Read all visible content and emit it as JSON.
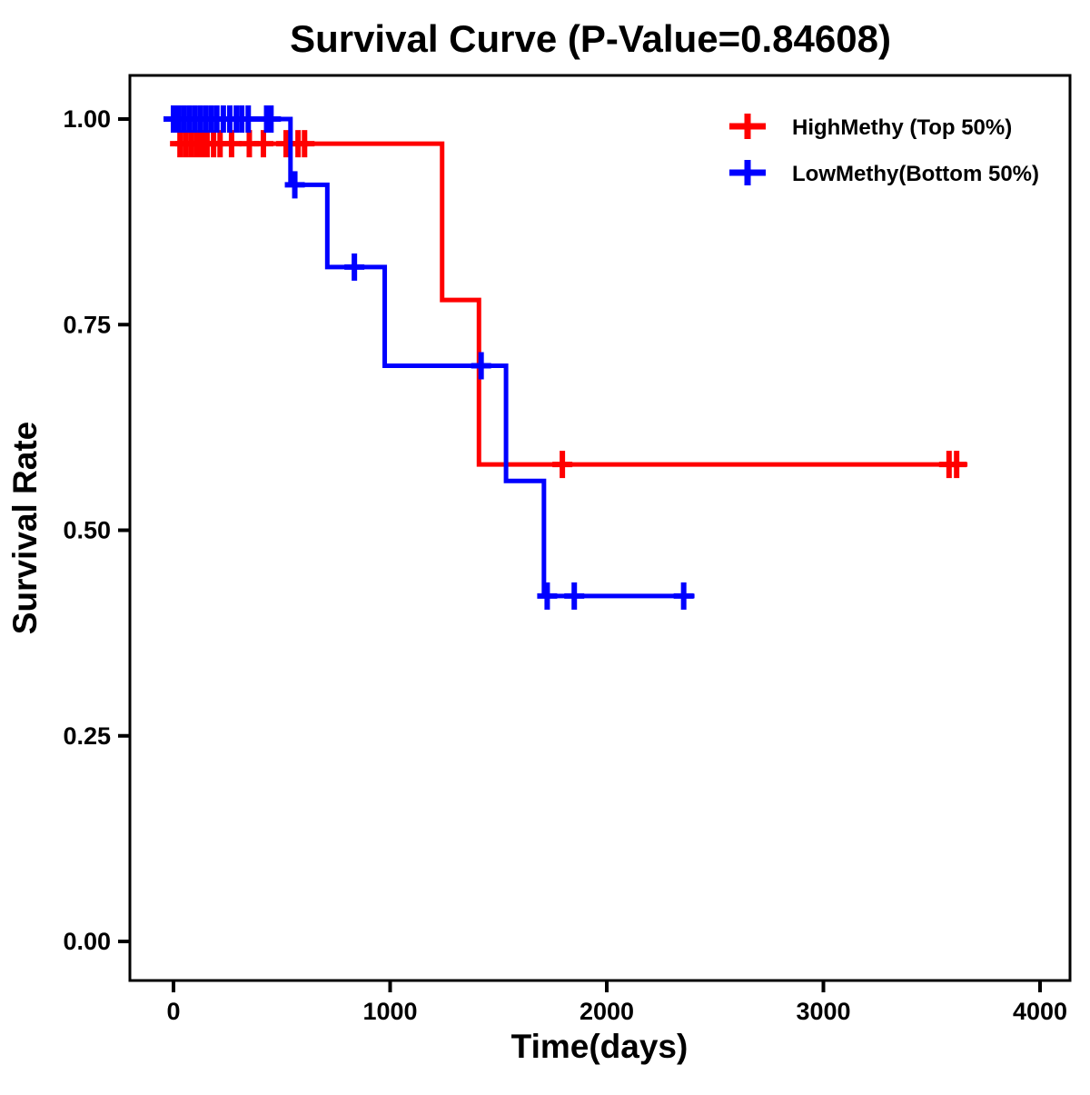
{
  "chart_data": {
    "type": "line",
    "subtype": "kaplan_meier_step_curve",
    "title": "Survival Curve (P-Value=0.84608)",
    "xlabel": "Time(days)",
    "ylabel": "Survival Rate",
    "xlim": [
      0,
      4000
    ],
    "ylim": [
      0.0,
      1.0
    ],
    "grid": false,
    "legend_position": "top-right",
    "x_ticks": [
      {
        "value": 0,
        "label": "0"
      },
      {
        "value": 1000,
        "label": "1000"
      },
      {
        "value": 2000,
        "label": "2000"
      },
      {
        "value": 3000,
        "label": "3000"
      },
      {
        "value": 4000,
        "label": "4000"
      }
    ],
    "y_ticks": [
      {
        "value": 0.0,
        "label": "0.00"
      },
      {
        "value": 0.25,
        "label": "0.25"
      },
      {
        "value": 0.5,
        "label": "0.50"
      },
      {
        "value": 0.75,
        "label": "0.75"
      },
      {
        "value": 1.0,
        "label": "1.00"
      }
    ],
    "series": [
      {
        "name": "HighMethy (Top 50%)",
        "slug": "highmethy",
        "color": "#FF0000",
        "steps": [
          [
            0,
            0.97
          ],
          [
            1240,
            0.97
          ],
          [
            1240,
            0.78
          ],
          [
            1410,
            0.78
          ],
          [
            1410,
            0.58
          ],
          [
            3665,
            0.58
          ]
        ],
        "censor_marks": [
          [
            30,
            0.97
          ],
          [
            55,
            0.97
          ],
          [
            80,
            0.97
          ],
          [
            105,
            0.97
          ],
          [
            130,
            0.97
          ],
          [
            155,
            0.97
          ],
          [
            185,
            0.97
          ],
          [
            215,
            0.97
          ],
          [
            268,
            0.97
          ],
          [
            350,
            0.97
          ],
          [
            415,
            0.97
          ],
          [
            520,
            0.97
          ],
          [
            575,
            0.97
          ],
          [
            605,
            0.97
          ],
          [
            1795,
            0.58
          ],
          [
            3580,
            0.58
          ],
          [
            3615,
            0.58
          ]
        ]
      },
      {
        "name": "LowMethy(Bottom 50%)",
        "slug": "lowmethy",
        "color": "#0000FF",
        "steps": [
          [
            0,
            1.0
          ],
          [
            540,
            1.0
          ],
          [
            540,
            0.92
          ],
          [
            710,
            0.92
          ],
          [
            710,
            0.82
          ],
          [
            975,
            0.82
          ],
          [
            975,
            0.7
          ],
          [
            1535,
            0.7
          ],
          [
            1535,
            0.56
          ],
          [
            1710,
            0.56
          ],
          [
            1710,
            0.42
          ],
          [
            2405,
            0.42
          ]
        ],
        "censor_marks": [
          [
            0,
            1.0
          ],
          [
            25,
            1.0
          ],
          [
            50,
            1.0
          ],
          [
            75,
            1.0
          ],
          [
            100,
            1.0
          ],
          [
            125,
            1.0
          ],
          [
            150,
            1.0
          ],
          [
            175,
            1.0
          ],
          [
            200,
            1.0
          ],
          [
            230,
            1.0
          ],
          [
            260,
            1.0
          ],
          [
            290,
            1.0
          ],
          [
            315,
            1.0
          ],
          [
            345,
            1.0
          ],
          [
            430,
            1.0
          ],
          [
            450,
            1.0
          ],
          [
            560,
            0.92
          ],
          [
            835,
            0.82
          ],
          [
            1420,
            0.7
          ],
          [
            1725,
            0.42
          ],
          [
            1850,
            0.42
          ],
          [
            2355,
            0.42
          ]
        ]
      }
    ]
  }
}
